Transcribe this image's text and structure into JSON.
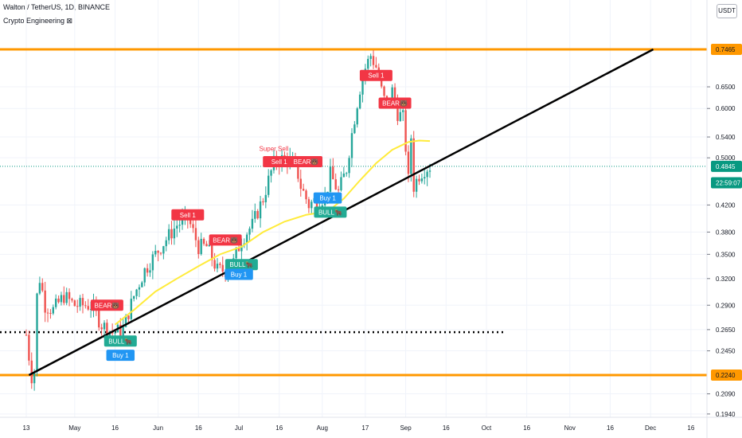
{
  "header": {
    "title": "Walton / TetherUS, 1D, BINANCE",
    "indicator": "Crypto Engineering ⊠"
  },
  "currency": "USDT",
  "price_axis": {
    "ticks": [
      {
        "label": "0.6500",
        "v": 0.65
      },
      {
        "label": "0.6000",
        "v": 0.6
      },
      {
        "label": "0.5400",
        "v": 0.54
      },
      {
        "label": "0.5000",
        "v": 0.5
      },
      {
        "label": "0.4200",
        "v": 0.42
      },
      {
        "label": "0.3800",
        "v": 0.38
      },
      {
        "label": "0.3500",
        "v": 0.35
      },
      {
        "label": "0.3200",
        "v": 0.32
      },
      {
        "label": "0.2900",
        "v": 0.29
      },
      {
        "label": "0.2650",
        "v": 0.265
      },
      {
        "label": "0.2450",
        "v": 0.245
      },
      {
        "label": "0.2090",
        "v": 0.209
      },
      {
        "label": "0.1940",
        "v": 0.194
      }
    ],
    "badges": [
      {
        "label": "0.7465",
        "v": 0.7465,
        "color": "#ff9800",
        "text": "#131722"
      },
      {
        "label": "0.4845",
        "v": 0.4845,
        "color": "#089981",
        "text": "#ffffff"
      },
      {
        "label": "22:59:07",
        "v": 0.456,
        "color": "#089981",
        "text": "#ffffff"
      },
      {
        "label": "0.2240",
        "v": 0.224,
        "color": "#ff9800",
        "text": "#131722"
      }
    ]
  },
  "time_axis": [
    {
      "label": "13",
      "d": 0
    },
    {
      "label": "May",
      "d": 18
    },
    {
      "label": "16",
      "d": 33
    },
    {
      "label": "Jun",
      "d": 49
    },
    {
      "label": "16",
      "d": 64
    },
    {
      "label": "Jul",
      "d": 79
    },
    {
      "label": "16",
      "d": 94
    },
    {
      "label": "Aug",
      "d": 110
    },
    {
      "label": "17",
      "d": 126
    },
    {
      "label": "Sep",
      "d": 141
    },
    {
      "label": "16",
      "d": 156
    },
    {
      "label": "Oct",
      "d": 171
    },
    {
      "label": "16",
      "d": 186
    },
    {
      "label": "Nov",
      "d": 202
    },
    {
      "label": "16",
      "d": 217
    },
    {
      "label": "Dec",
      "d": 232
    },
    {
      "label": "16",
      "d": 247
    }
  ],
  "chart_data": {
    "type": "candlestick",
    "symbol": "Walton / TetherUS",
    "timeframe": "1D",
    "exchange": "BINANCE",
    "colors": {
      "up": "#26a69a",
      "down": "#ef5350",
      "ma": "#ffeb3b",
      "resistance": "#ff9800",
      "trend": "#000000"
    },
    "anchors": [
      {
        "d": 0,
        "v": 0.26
      },
      {
        "d": 1,
        "v": 0.24
      },
      {
        "d": 2,
        "v": 0.223
      },
      {
        "d": 3,
        "v": 0.228
      },
      {
        "d": 4,
        "v": 0.3
      },
      {
        "d": 5,
        "v": 0.32
      },
      {
        "d": 7,
        "v": 0.29
      },
      {
        "d": 10,
        "v": 0.285
      },
      {
        "d": 14,
        "v": 0.3
      },
      {
        "d": 18,
        "v": 0.29
      },
      {
        "d": 24,
        "v": 0.29
      },
      {
        "d": 28,
        "v": 0.27
      },
      {
        "d": 32,
        "v": 0.262
      },
      {
        "d": 36,
        "v": 0.265
      },
      {
        "d": 40,
        "v": 0.3
      },
      {
        "d": 44,
        "v": 0.33
      },
      {
        "d": 48,
        "v": 0.35
      },
      {
        "d": 52,
        "v": 0.37
      },
      {
        "d": 56,
        "v": 0.39
      },
      {
        "d": 60,
        "v": 0.4
      },
      {
        "d": 64,
        "v": 0.36
      },
      {
        "d": 67,
        "v": 0.36
      },
      {
        "d": 71,
        "v": 0.33
      },
      {
        "d": 74,
        "v": 0.33
      },
      {
        "d": 77,
        "v": 0.34
      },
      {
        "d": 80,
        "v": 0.37
      },
      {
        "d": 84,
        "v": 0.39
      },
      {
        "d": 88,
        "v": 0.43
      },
      {
        "d": 92,
        "v": 0.49
      },
      {
        "d": 96,
        "v": 0.5
      },
      {
        "d": 100,
        "v": 0.49
      },
      {
        "d": 102,
        "v": 0.45
      },
      {
        "d": 105,
        "v": 0.42
      },
      {
        "d": 108,
        "v": 0.43
      },
      {
        "d": 111,
        "v": 0.43
      },
      {
        "d": 113,
        "v": 0.47
      },
      {
        "d": 116,
        "v": 0.44
      },
      {
        "d": 119,
        "v": 0.48
      },
      {
        "d": 122,
        "v": 0.58
      },
      {
        "d": 125,
        "v": 0.68
      },
      {
        "d": 128,
        "v": 0.73
      },
      {
        "d": 130,
        "v": 0.7
      },
      {
        "d": 132,
        "v": 0.64
      },
      {
        "d": 134,
        "v": 0.6
      },
      {
        "d": 136,
        "v": 0.64
      },
      {
        "d": 138,
        "v": 0.59
      },
      {
        "d": 140,
        "v": 0.58
      },
      {
        "d": 142,
        "v": 0.46
      },
      {
        "d": 143,
        "v": 0.54
      },
      {
        "d": 144,
        "v": 0.45
      },
      {
        "d": 146,
        "v": 0.47
      },
      {
        "d": 148,
        "v": 0.48
      },
      {
        "d": 150,
        "v": 0.4845
      }
    ],
    "ma": [
      {
        "d": 33,
        "v": 0.27
      },
      {
        "d": 40,
        "v": 0.285
      },
      {
        "d": 48,
        "v": 0.305
      },
      {
        "d": 56,
        "v": 0.32
      },
      {
        "d": 64,
        "v": 0.335
      },
      {
        "d": 72,
        "v": 0.35
      },
      {
        "d": 80,
        "v": 0.36
      },
      {
        "d": 88,
        "v": 0.38
      },
      {
        "d": 96,
        "v": 0.395
      },
      {
        "d": 104,
        "v": 0.405
      },
      {
        "d": 112,
        "v": 0.41
      },
      {
        "d": 118,
        "v": 0.43
      },
      {
        "d": 124,
        "v": 0.46
      },
      {
        "d": 130,
        "v": 0.49
      },
      {
        "d": 136,
        "v": 0.515
      },
      {
        "d": 142,
        "v": 0.53
      },
      {
        "d": 146,
        "v": 0.533
      },
      {
        "d": 150,
        "v": 0.532
      }
    ],
    "levels": [
      {
        "name": "resistance",
        "v": 0.7465
      },
      {
        "name": "support",
        "v": 0.224
      },
      {
        "name": "dotted-level",
        "v": 0.2625
      }
    ],
    "trendline": [
      {
        "d": 1,
        "v": 0.224
      },
      {
        "d": 233,
        "v": 0.7465
      }
    ],
    "current_price": 0.4845,
    "signals": [
      {
        "text": "BEAR🐻",
        "d": 30,
        "v": 0.29,
        "color": "#f23645"
      },
      {
        "text": "BULL🐂",
        "d": 35,
        "v": 0.254,
        "color": "#22ab94"
      },
      {
        "text": "Buy 1",
        "d": 35,
        "v": 0.241,
        "color": "#2196f3"
      },
      {
        "text": "Sell 1",
        "d": 60,
        "v": 0.405,
        "color": "#f23645"
      },
      {
        "text": "BEAR🐻",
        "d": 74,
        "v": 0.369,
        "color": "#f23645"
      },
      {
        "text": "BULL🐂",
        "d": 80,
        "v": 0.337,
        "color": "#22ab94"
      },
      {
        "text": "Buy 1",
        "d": 79,
        "v": 0.325,
        "color": "#2196f3"
      },
      {
        "text": "Super Sell",
        "d": 92,
        "v": 0.513,
        "color": "#f23645"
      },
      {
        "text": "Sell 1",
        "d": 94,
        "v": 0.493,
        "color": "#f23645"
      },
      {
        "text": "BEAR🐻",
        "d": 104,
        "v": 0.493,
        "color": "#f23645"
      },
      {
        "text": "Buy 1",
        "d": 112,
        "v": 0.431,
        "color": "#2196f3"
      },
      {
        "text": "BULL🐂",
        "d": 113,
        "v": 0.409,
        "color": "#22ab94"
      },
      {
        "text": "Sell 1",
        "d": 130,
        "v": 0.678,
        "color": "#f23645"
      },
      {
        "text": "BEAR🐻",
        "d": 137,
        "v": 0.612,
        "color": "#f23645"
      }
    ]
  }
}
